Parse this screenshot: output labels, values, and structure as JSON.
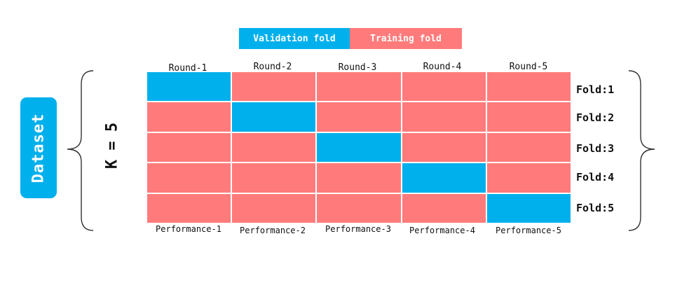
{
  "legend": {
    "validation_label": "Validation fold",
    "training_label": "Training fold"
  },
  "colors": {
    "validation": "#00b0ec",
    "training": "#ff7b7b",
    "dataset_badge": "#00b0ec"
  },
  "dataset_label": "Dataset",
  "k_label": "K = 5",
  "rounds": [
    "Round-1",
    "Round-2",
    "Round-3",
    "Round-4",
    "Round-5"
  ],
  "folds": [
    "Fold:1",
    "Fold:2",
    "Fold:3",
    "Fold:4",
    "Fold:5"
  ],
  "performance": [
    "Performance-1",
    "Performance-2",
    "Performance-3",
    "Performance-4",
    "Performance-5"
  ],
  "grid": [
    [
      "validation",
      "training",
      "training",
      "training",
      "training"
    ],
    [
      "training",
      "validation",
      "training",
      "training",
      "training"
    ],
    [
      "training",
      "training",
      "validation",
      "training",
      "training"
    ],
    [
      "training",
      "training",
      "training",
      "validation",
      "training"
    ],
    [
      "training",
      "training",
      "training",
      "training",
      "validation"
    ]
  ]
}
